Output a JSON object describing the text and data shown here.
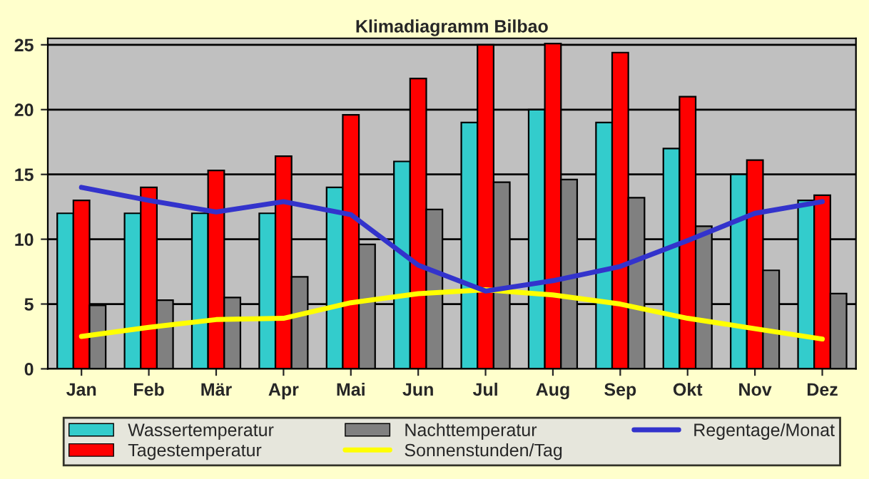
{
  "chart_data": {
    "type": "bar",
    "title": "Klimadiagramm Bilbao",
    "categories": [
      "Jan",
      "Feb",
      "Mär",
      "Apr",
      "Mai",
      "Jun",
      "Jul",
      "Aug",
      "Sep",
      "Okt",
      "Nov",
      "Dez"
    ],
    "series": [
      {
        "name": "Wassertemperatur",
        "color": "#33cccc",
        "values": [
          12,
          12,
          12,
          12,
          14,
          16,
          19,
          20,
          19,
          17,
          15,
          13
        ]
      },
      {
        "name": "Tagestemperatur",
        "color": "#ff0000",
        "values": [
          13,
          14,
          15.3,
          16.4,
          19.6,
          22.4,
          25,
          25.1,
          24.4,
          21,
          16.1,
          13.4
        ]
      },
      {
        "name": "Nachttemperatur",
        "color": "#808080",
        "values": [
          4.9,
          5.3,
          5.5,
          7.1,
          9.6,
          12.3,
          14.4,
          14.6,
          13.2,
          11,
          7.6,
          5.8
        ]
      },
      {
        "name": "Sonnenstunden/Tag",
        "color": "#ffff00",
        "type": "line",
        "values": [
          2.5,
          3.2,
          3.8,
          3.9,
          5.1,
          5.8,
          6.1,
          5.7,
          5.0,
          3.9,
          3.1,
          2.3
        ]
      },
      {
        "name": "Regentage/Monat",
        "color": "#3333cc",
        "type": "line",
        "values": [
          14,
          13,
          12.1,
          12.9,
          11.9,
          8,
          6,
          6.8,
          7.9,
          9.9,
          12,
          12.9
        ]
      }
    ],
    "ylim": [
      0,
      25.5
    ],
    "yticks": [
      0,
      5,
      10,
      15,
      20,
      25
    ],
    "grid": "y",
    "legend": "bottom",
    "marker": "none",
    "line_style": "solid"
  }
}
